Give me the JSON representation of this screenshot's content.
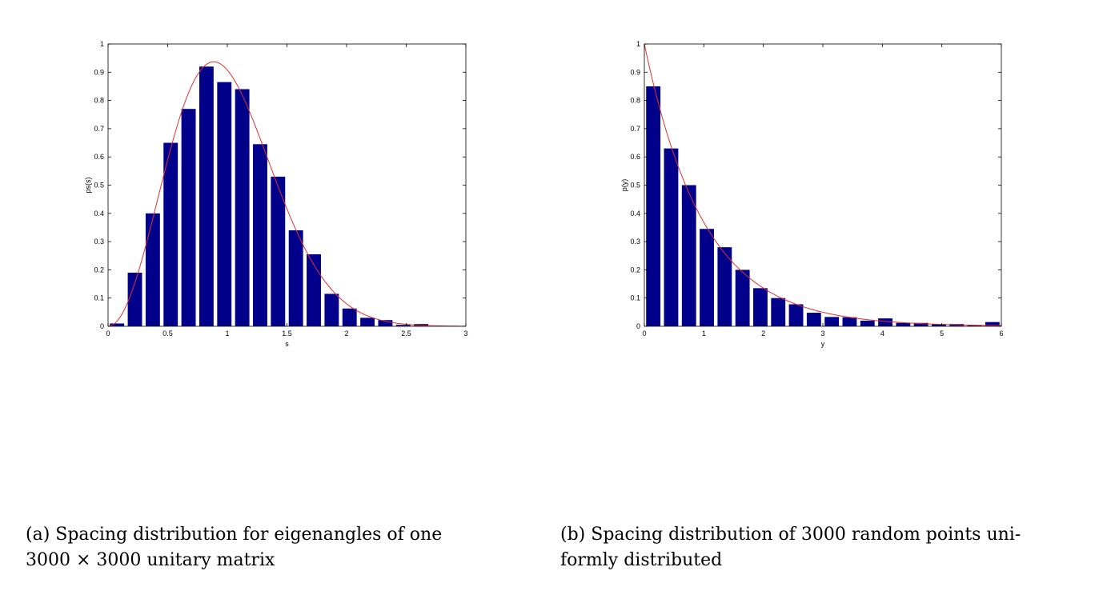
{
  "chart_data": [
    {
      "type": "bar",
      "xlabel": "s",
      "ylabel": "ps(s)",
      "xlim": [
        0,
        3
      ],
      "ylim": [
        0,
        1
      ],
      "xticks": [
        0,
        0.5,
        1,
        1.5,
        2,
        2.5,
        3
      ],
      "xtick_labels": [
        "0",
        "0.5",
        "1",
        "1.5",
        "2",
        "2.5",
        "3"
      ],
      "yticks": [
        0,
        0.1,
        0.2,
        0.3,
        0.4,
        0.5,
        0.6,
        0.7,
        0.8,
        0.9,
        1
      ],
      "ytick_labels": [
        "0",
        "0.1",
        "0.2",
        "0.3",
        "0.4",
        "0.5",
        "0.6",
        "0.7",
        "0.8",
        "0.9",
        "1"
      ],
      "x": [
        0.075,
        0.225,
        0.375,
        0.525,
        0.675,
        0.825,
        0.975,
        1.125,
        1.275,
        1.425,
        1.575,
        1.725,
        1.875,
        2.025,
        2.175,
        2.325,
        2.475,
        2.625,
        2.775,
        2.925
      ],
      "values": [
        0.01,
        0.19,
        0.4,
        0.65,
        0.77,
        0.92,
        0.865,
        0.84,
        0.645,
        0.53,
        0.34,
        0.255,
        0.115,
        0.063,
        0.03,
        0.022,
        0.005,
        0.008,
        0,
        0
      ],
      "bar_width": 0.12,
      "bar_color": "#00008b",
      "curve": {
        "type": "line",
        "color": "#e03030",
        "formula": "(32/pi^2) s^2 exp(-4 s^2 / pi)"
      },
      "grid": false
    },
    {
      "type": "bar",
      "xlabel": "y",
      "ylabel": "p(y)",
      "xlim": [
        0,
        6
      ],
      "ylim": [
        0,
        1
      ],
      "xticks": [
        0,
        1,
        2,
        3,
        4,
        5,
        6
      ],
      "xtick_labels": [
        "0",
        "1",
        "2",
        "3",
        "4",
        "5",
        "6"
      ],
      "yticks": [
        0,
        0.1,
        0.2,
        0.3,
        0.4,
        0.5,
        0.6,
        0.7,
        0.8,
        0.9,
        1
      ],
      "ytick_labels": [
        "0",
        "0.1",
        "0.2",
        "0.3",
        "0.4",
        "0.5",
        "0.6",
        "0.7",
        "0.8",
        "0.9",
        "1"
      ],
      "x": [
        0.15,
        0.45,
        0.75,
        1.05,
        1.35,
        1.65,
        1.95,
        2.25,
        2.55,
        2.85,
        3.15,
        3.45,
        3.75,
        4.05,
        4.35,
        4.65,
        4.95,
        5.25,
        5.55,
        5.85
      ],
      "values": [
        0.85,
        0.63,
        0.5,
        0.345,
        0.28,
        0.2,
        0.135,
        0.1,
        0.078,
        0.048,
        0.033,
        0.032,
        0.02,
        0.028,
        0.012,
        0.012,
        0.008,
        0.008,
        0.003,
        0.015
      ],
      "bar_width": 0.24,
      "bar_color": "#00008b",
      "curve": {
        "type": "line",
        "color": "#e03030",
        "formula": "exp(-y)"
      },
      "grid": false
    }
  ],
  "captions": {
    "a_line1": "(a) Spacing distribution for eigenangles of one",
    "a_line2": "3000 × 3000 unitary matrix",
    "b_line1": "(b) Spacing distribution of 3000 random points uni-",
    "b_line2": "formly distributed"
  }
}
